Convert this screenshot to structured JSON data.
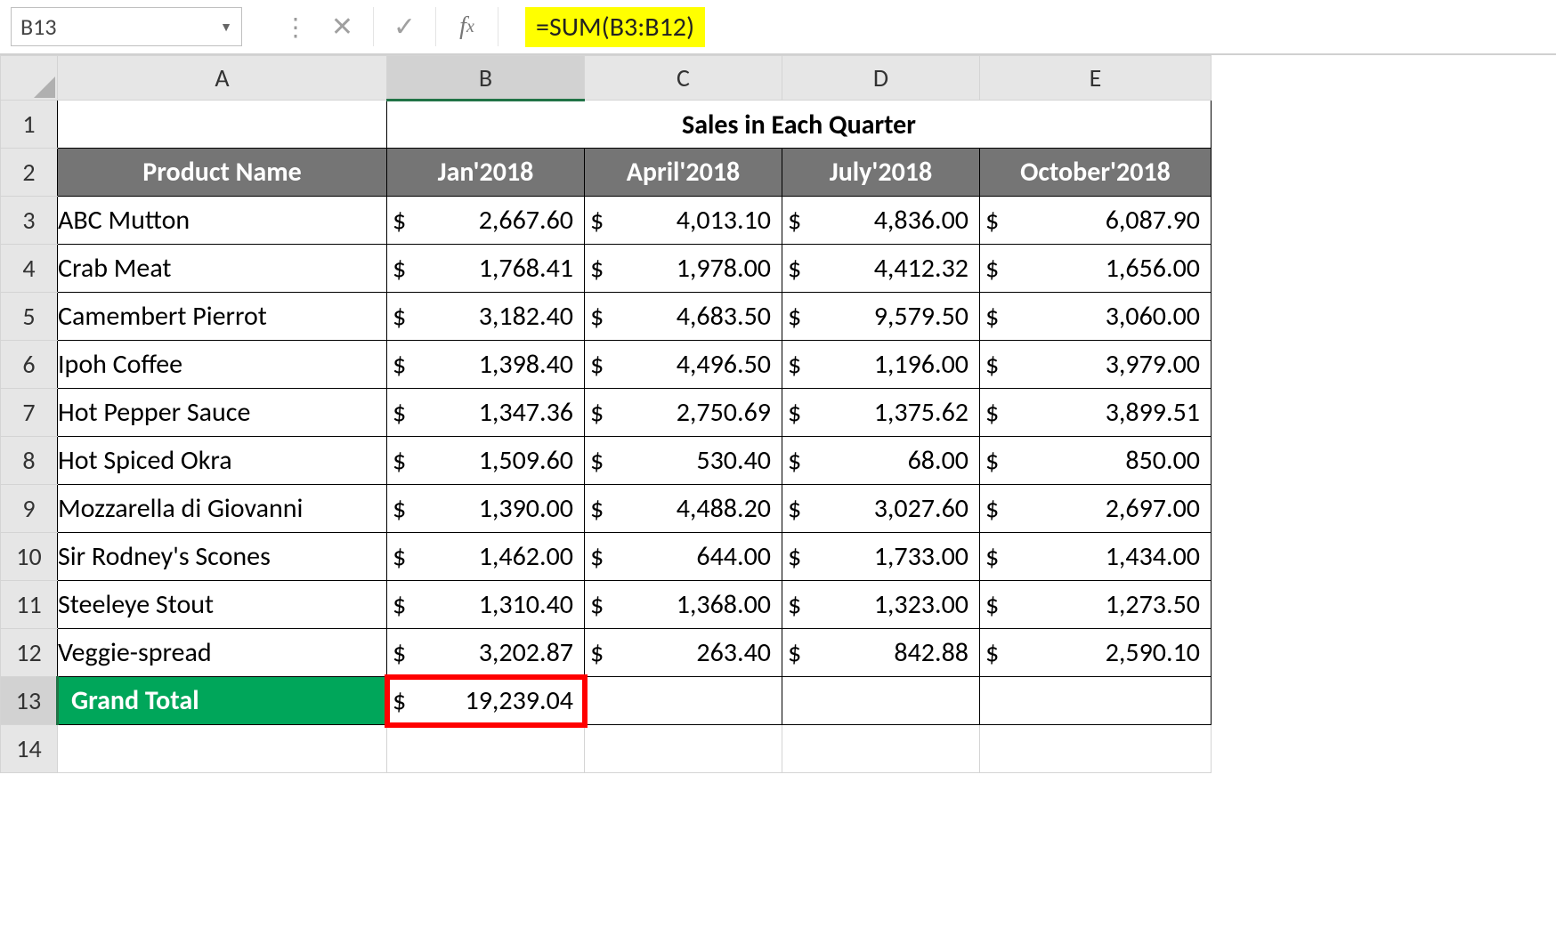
{
  "formulaBar": {
    "cellRef": "B13",
    "formula": "=SUM(B3:B12)",
    "highlight_bg": "#ffff00"
  },
  "columns": [
    "A",
    "B",
    "C",
    "D",
    "E"
  ],
  "selected_col": "B",
  "selected_row": "13",
  "merged_title": "Sales in Each Quarter",
  "headers": {
    "product": "Product Name",
    "months": [
      "Jan'2018",
      "April'2018",
      "July'2018",
      "October'2018"
    ]
  },
  "header_bg": "#757575",
  "header_fg": "#ffffff",
  "grand_total_bg": "#00a65a",
  "grand_total_fg": "#ffffff",
  "selection_outline": "#ff0000",
  "currency_symbol": "$",
  "rows": [
    {
      "n": "3",
      "product": "ABC Mutton",
      "vals": [
        "2,667.60",
        "4,013.10",
        "4,836.00",
        "6,087.90"
      ]
    },
    {
      "n": "4",
      "product": "Crab Meat",
      "vals": [
        "1,768.41",
        "1,978.00",
        "4,412.32",
        "1,656.00"
      ]
    },
    {
      "n": "5",
      "product": "Camembert Pierrot",
      "vals": [
        "3,182.40",
        "4,683.50",
        "9,579.50",
        "3,060.00"
      ]
    },
    {
      "n": "6",
      "product": "Ipoh Coffee",
      "vals": [
        "1,398.40",
        "4,496.50",
        "1,196.00",
        "3,979.00"
      ]
    },
    {
      "n": "7",
      "product": "Hot Pepper Sauce",
      "vals": [
        "1,347.36",
        "2,750.69",
        "1,375.62",
        "3,899.51"
      ]
    },
    {
      "n": "8",
      "product": " Hot Spiced Okra",
      "vals": [
        "1,509.60",
        "530.40",
        "68.00",
        "850.00"
      ]
    },
    {
      "n": "9",
      "product": "Mozzarella di Giovanni",
      "vals": [
        "1,390.00",
        "4,488.20",
        "3,027.60",
        "2,697.00"
      ]
    },
    {
      "n": "10",
      "product": "Sir Rodney's Scones",
      "vals": [
        "1,462.00",
        "644.00",
        "1,733.00",
        "1,434.00"
      ]
    },
    {
      "n": "11",
      "product": "Steeleye Stout",
      "vals": [
        "1,310.40",
        "1,368.00",
        "1,323.00",
        "1,273.50"
      ]
    },
    {
      "n": "12",
      "product": "Veggie-spread",
      "vals": [
        "3,202.87",
        "263.40",
        "842.88",
        "2,590.10"
      ]
    }
  ],
  "grand_total": {
    "n": "13",
    "label": "Grand Total",
    "vals": [
      "19,239.04",
      "",
      "",
      ""
    ]
  },
  "empty_row": "14"
}
